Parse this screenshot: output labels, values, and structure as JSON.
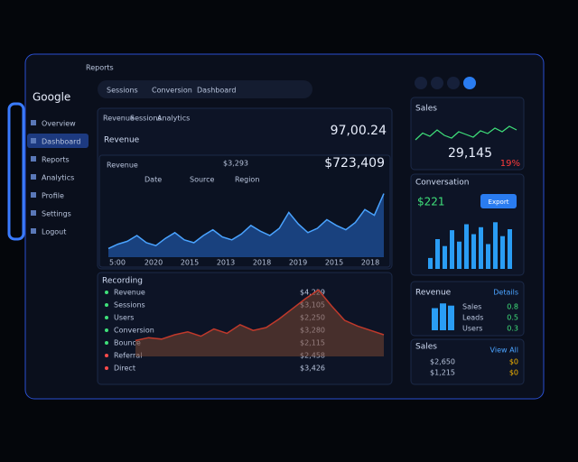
{
  "header": {
    "logo": "Google",
    "tabs": [
      "Sessions",
      "Conversion",
      "Dashboard"
    ],
    "menu": "Reports",
    "icons": [
      "Home",
      "Alerts",
      "Help",
      "Profile"
    ]
  },
  "sidebar": {
    "items": [
      "Overview",
      "Dashboard",
      "Reports",
      "Analytics",
      "Profile",
      "Settings",
      "Logout"
    ]
  },
  "main": {
    "tabs": [
      "Revenue",
      "Sessions",
      "Analytics"
    ],
    "title": "Revenue",
    "total": "97,00.24",
    "panel_label": "Revenue",
    "panel_value": "$3,293",
    "subtotal": "$723,409",
    "filters": [
      "Date",
      "Source",
      "Region"
    ],
    "chart": {
      "type": "area",
      "values": [
        12,
        18,
        22,
        30,
        20,
        16,
        26,
        34,
        24,
        20,
        30,
        38,
        28,
        24,
        32,
        44,
        36,
        30,
        40,
        62,
        46,
        34,
        40,
        52,
        44,
        38,
        48,
        66,
        58,
        88
      ],
      "x_labels": [
        "5:00",
        "2020",
        "2015",
        "2013",
        "2018",
        "2019",
        "2015",
        "2018"
      ]
    }
  },
  "table": {
    "title": "Recording",
    "rows": [
      [
        "Revenue",
        "$4,229"
      ],
      [
        "Sessions",
        "$3,105"
      ],
      [
        "Users",
        "$2,250"
      ],
      [
        "Conversion",
        "$3,280"
      ],
      [
        "Bounce",
        "$2,115"
      ],
      [
        "Referral",
        "$2,458"
      ],
      [
        "Direct",
        "$3,426"
      ]
    ],
    "chart": {
      "type": "area",
      "values": [
        22,
        26,
        24,
        30,
        34,
        28,
        38,
        32,
        44,
        36,
        40,
        52,
        66,
        80,
        92,
        70,
        50,
        42,
        36,
        30
      ]
    }
  },
  "right": {
    "stat": {
      "label": "Sales",
      "value": "29,145",
      "change": "19%",
      "sparkline": [
        40,
        55,
        48,
        62,
        50,
        44,
        58,
        52,
        46,
        60,
        54,
        66,
        58,
        70,
        62
      ]
    },
    "conversion": {
      "title": "Conversation",
      "value": "$221",
      "button": "Export",
      "bars": [
        22,
        60,
        46,
        78,
        55,
        90,
        70,
        84,
        50,
        94,
        66,
        80
      ]
    },
    "billing": {
      "title": "Revenue",
      "button": "Details",
      "bars": [
        70,
        85,
        78
      ],
      "rows": [
        "Sales",
        "Leads",
        "Users"
      ],
      "values": [
        "0.8",
        "0.5",
        "0.3"
      ]
    },
    "sales": {
      "title": "Sales",
      "button": "View All",
      "rows": [
        "$2,650",
        "$1,215"
      ],
      "values": [
        "$0",
        "$0"
      ]
    }
  }
}
